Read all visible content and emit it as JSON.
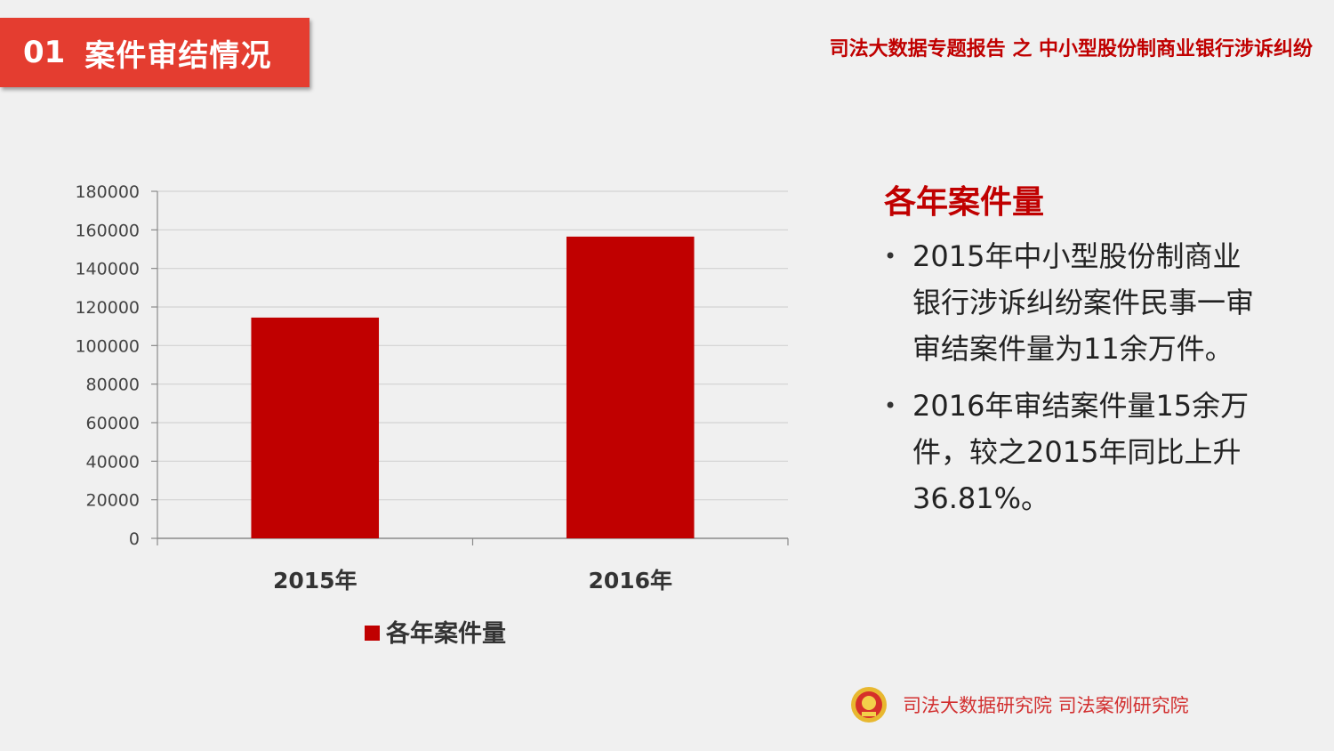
{
  "section": {
    "number": "01",
    "title": "案件审结情况"
  },
  "report_title": "司法大数据专题报告 之 中小型股份制商业银行涉诉纠纷",
  "side": {
    "heading": "各年案件量",
    "bullets": [
      "2015年中小型股份制商业银行涉诉纠纷案件民事一审审结案件量为11余万件。",
      "2016年审结案件量15余万件，较之2015年同比上升36.81%。"
    ]
  },
  "footer": {
    "text": "司法大数据研究院  司法案例研究院",
    "icon": "court-emblem-icon"
  },
  "colors": {
    "accent": "#e43d30",
    "bar": "#c00000",
    "title_red": "#c00000"
  },
  "chart_data": {
    "type": "bar",
    "categories": [
      "2015年",
      "2016年"
    ],
    "series": [
      {
        "name": "各年案件量",
        "values": [
          114500,
          156500
        ]
      }
    ],
    "ylim": [
      0,
      180000
    ],
    "yticks": [
      "0",
      "20000",
      "40000",
      "60000",
      "80000",
      "100000",
      "120000",
      "140000",
      "160000",
      "180000"
    ],
    "grid": true,
    "legend": "bottom"
  }
}
